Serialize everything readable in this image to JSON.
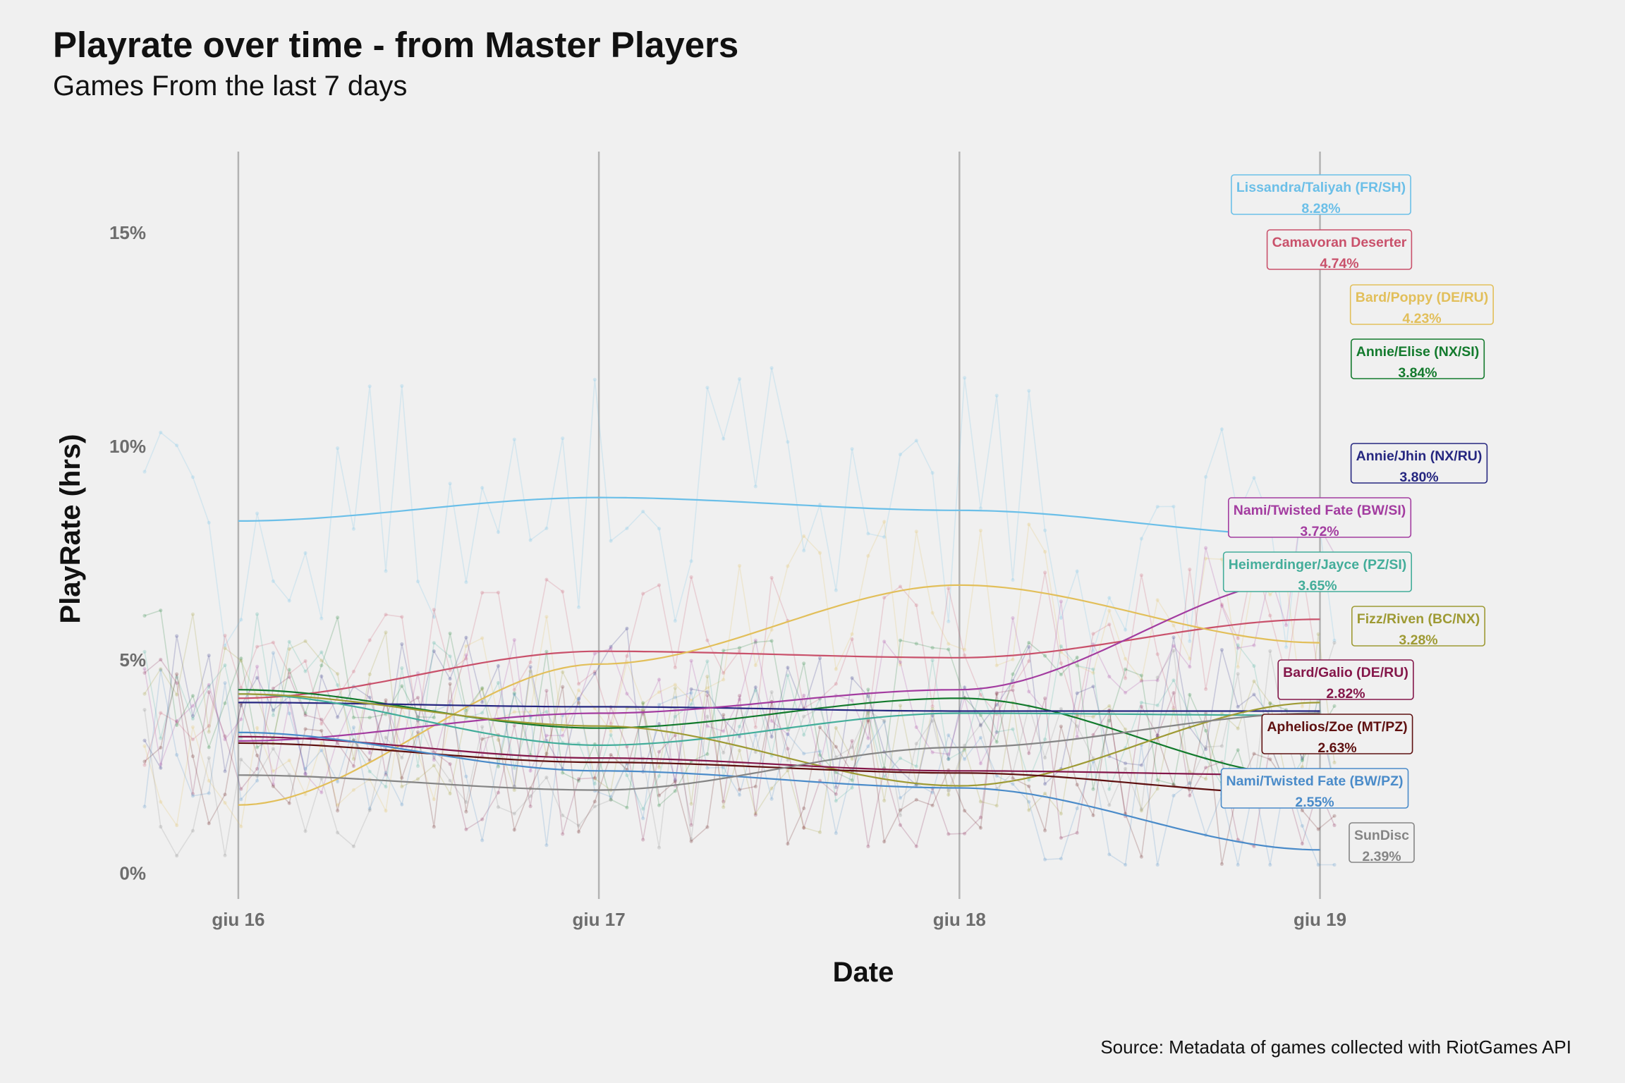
{
  "chart_data": {
    "type": "line",
    "title": "Playrate over time - from Master Players",
    "subtitle": "Games From the last 7 days",
    "caption": "Source: Metadata of games collected with RiotGames API",
    "xlabel": "Date",
    "ylabel": "PlayRate (hrs)",
    "x_ticks": [
      "giu 16",
      "giu 17",
      "giu 18",
      "giu 19"
    ],
    "y_ticks": [
      "0%",
      "5%",
      "10%",
      "15%"
    ],
    "xlim": [
      -0.26,
      1.31
    ],
    "ylim": [
      -0.6,
      16.9
    ],
    "grid": "vertical major only",
    "legend": "direct labels at right end",
    "series": [
      {
        "name": "Lissandra/Taliyah (FR/SH)",
        "value_label": "8.28%",
        "color": "#6bbfe8",
        "trend": [
          [
            0,
            8.25
          ],
          [
            1,
            8.8
          ],
          [
            2,
            8.5
          ],
          [
            3,
            7.9
          ]
        ]
      },
      {
        "name": "Camavoran Deserter",
        "value_label": "4.74%",
        "color": "#c9516b",
        "trend": [
          [
            0,
            4.1
          ],
          [
            1,
            5.2
          ],
          [
            2,
            5.05
          ],
          [
            3,
            5.95
          ]
        ]
      },
      {
        "name": "Bard/Poppy (DE/RU)",
        "value_label": "4.23%",
        "color": "#e2bf5a",
        "trend": [
          [
            0,
            1.6
          ],
          [
            1,
            4.9
          ],
          [
            2,
            6.75
          ],
          [
            3,
            5.4
          ]
        ]
      },
      {
        "name": "Annie/Elise (NX/SI)",
        "value_label": "3.84%",
        "color": "#137a2d",
        "trend": [
          [
            0,
            4.3
          ],
          [
            1,
            3.4
          ],
          [
            2,
            4.1
          ],
          [
            3,
            2.25
          ]
        ]
      },
      {
        "name": "Annie/Jhin (NX/RU)",
        "value_label": "3.80%",
        "color": "#262780",
        "trend": [
          [
            0,
            4.0
          ],
          [
            1,
            3.9
          ],
          [
            2,
            3.8
          ],
          [
            3,
            3.8
          ]
        ]
      },
      {
        "name": "Nami/Twisted Fate (BW/SI)",
        "value_label": "3.72%",
        "color": "#a33ca0",
        "trend": [
          [
            0,
            3.1
          ],
          [
            1,
            3.75
          ],
          [
            2,
            4.3
          ],
          [
            3,
            6.95
          ]
        ]
      },
      {
        "name": "Heimerdinger/Jayce (PZ/SI)",
        "value_label": "3.65%",
        "color": "#43ad9a",
        "trend": [
          [
            0,
            4.2
          ],
          [
            1,
            3.0
          ],
          [
            2,
            3.75
          ],
          [
            3,
            3.7
          ]
        ]
      },
      {
        "name": "Fizz/Riven (BC/NX)",
        "value_label": "3.28%",
        "color": "#9e9a34",
        "trend": [
          [
            0,
            4.2
          ],
          [
            1,
            3.45
          ],
          [
            2,
            2.05
          ],
          [
            3,
            4.0
          ]
        ]
      },
      {
        "name": "Bard/Galio (DE/RU)",
        "value_label": "2.82%",
        "color": "#84174a",
        "trend": [
          [
            0,
            3.2
          ],
          [
            1,
            2.7
          ],
          [
            2,
            2.4
          ],
          [
            3,
            2.3
          ]
        ]
      },
      {
        "name": "Aphelios/Zoe (MT/PZ)",
        "value_label": "2.63%",
        "color": "#5e1010",
        "trend": [
          [
            0,
            3.05
          ],
          [
            1,
            2.6
          ],
          [
            2,
            2.35
          ],
          [
            3,
            1.85
          ]
        ]
      },
      {
        "name": "Nami/Twisted Fate (BW/PZ)",
        "value_label": "2.55%",
        "color": "#4a8bc9",
        "trend": [
          [
            0,
            3.3
          ],
          [
            1,
            2.4
          ],
          [
            2,
            2.0
          ],
          [
            3,
            0.55
          ]
        ]
      },
      {
        "name": "SunDisc",
        "value_label": "2.39%",
        "color": "#858585",
        "trend": [
          [
            0,
            2.3
          ],
          [
            1,
            1.95
          ],
          [
            2,
            2.95
          ],
          [
            3,
            3.75
          ]
        ]
      }
    ]
  }
}
